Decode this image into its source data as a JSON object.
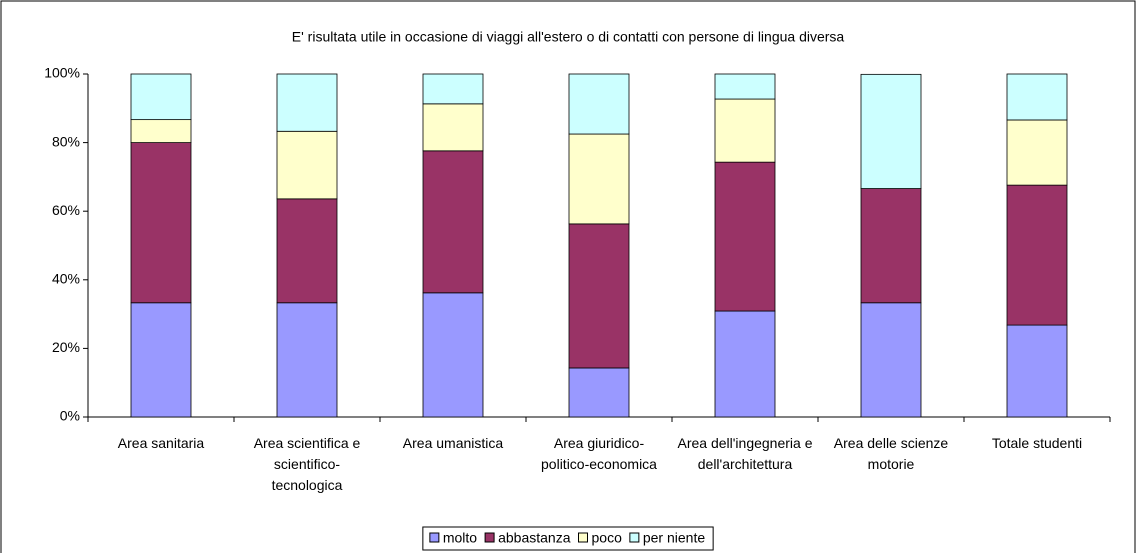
{
  "chart_data": {
    "type": "stacked_bar_100",
    "title": "E' risultata utile in occasione di viaggi all'estero o di contatti con persone di lingua diversa",
    "categories": [
      "Area sanitaria",
      "Area scientifica e scientifico-tecnologica",
      "Area umanistica",
      "Area giuridico-politico-economica",
      "Area dell'ingegneria e dell'architettura",
      "Area delle scienze motorie",
      "Totale studenti"
    ],
    "series": [
      {
        "name": "molto",
        "color": "#9999ff",
        "values": [
          33.3,
          33.3,
          36.2,
          14.3,
          30.9,
          33.3,
          26.8
        ]
      },
      {
        "name": "abbastanza",
        "color": "#993366",
        "values": [
          46.7,
          30.3,
          41.4,
          42.0,
          43.4,
          33.3,
          40.8
        ]
      },
      {
        "name": "poco",
        "color": "#ffffcc",
        "values": [
          6.7,
          19.7,
          13.7,
          26.2,
          18.4,
          0,
          19.0
        ]
      },
      {
        "name": "per niente",
        "color": "#ccffff",
        "values": [
          13.3,
          16.7,
          8.7,
          17.5,
          7.3,
          33.3,
          13.4
        ]
      }
    ],
    "ylim": [
      0,
      100
    ],
    "yticks": [
      {
        "value": 0,
        "label": "0%"
      },
      {
        "value": 20,
        "label": "20%"
      },
      {
        "value": 40,
        "label": "40%"
      },
      {
        "value": 60,
        "label": "60%"
      },
      {
        "value": 80,
        "label": "80%"
      },
      {
        "value": 100,
        "label": "100%"
      }
    ],
    "legend": "bottom"
  }
}
